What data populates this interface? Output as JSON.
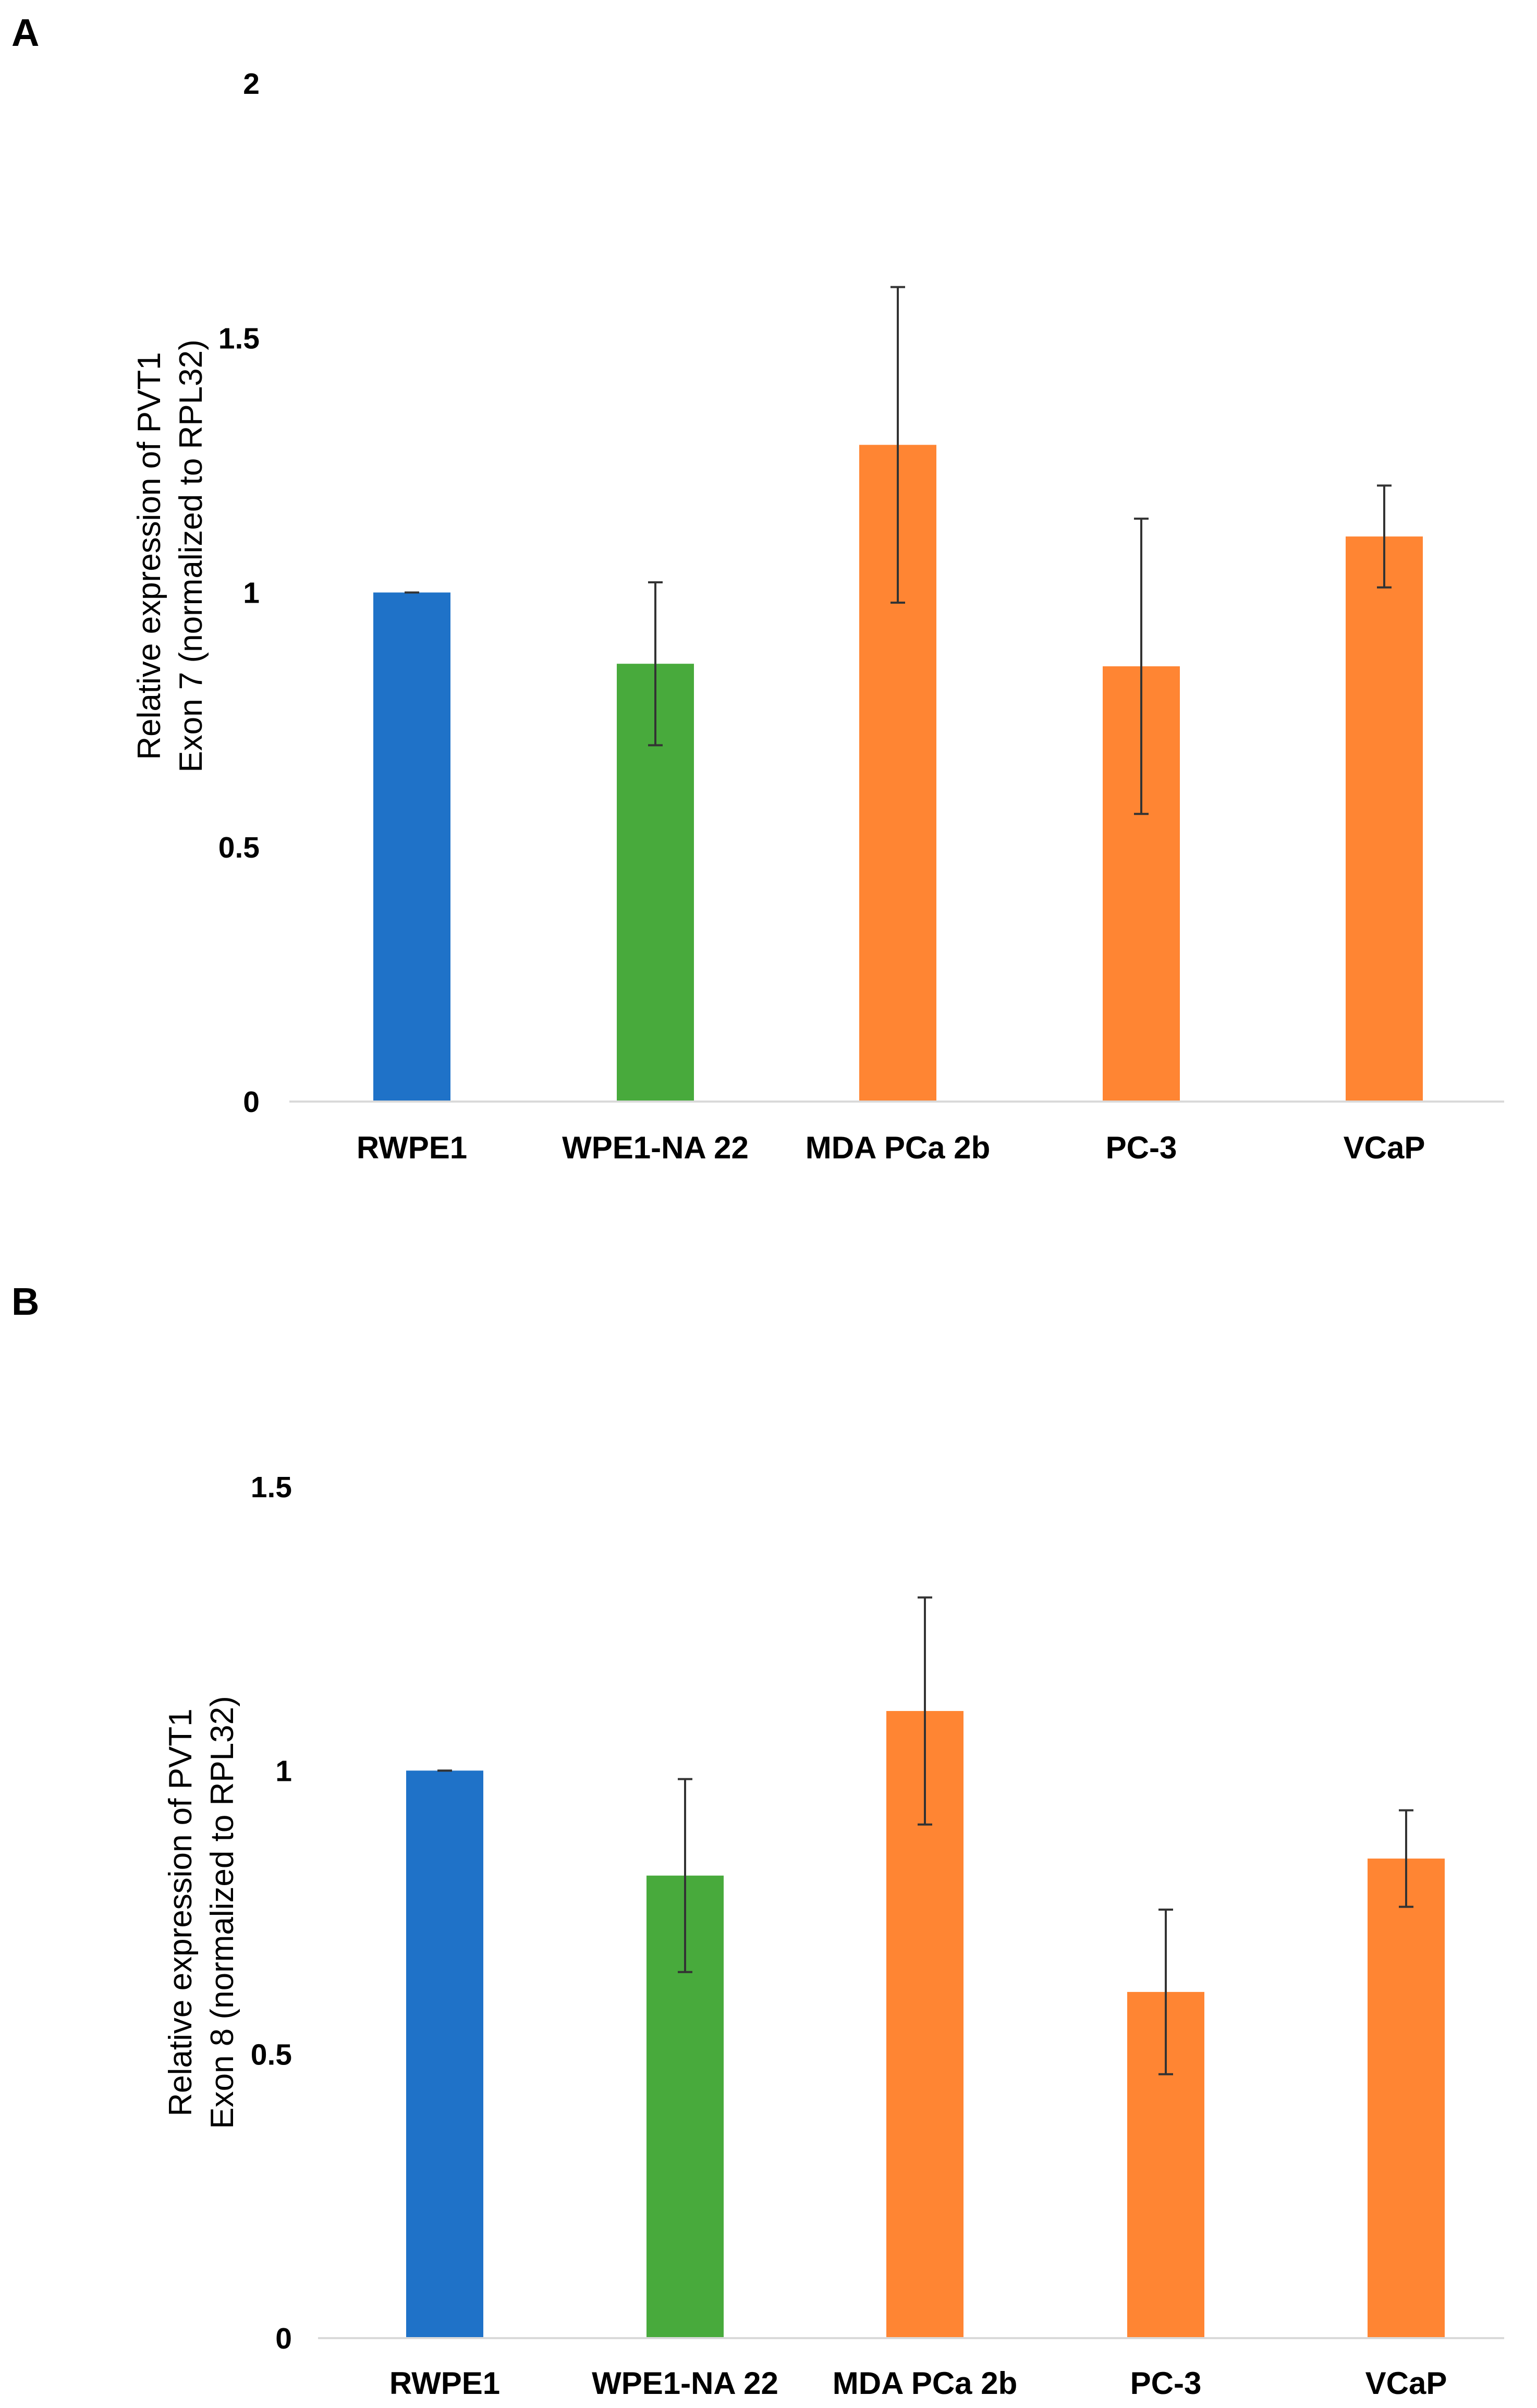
{
  "colors": {
    "RWPE1": "#1f72c8",
    "WPE1-NA 22": "#48aa3c",
    "MDA PCa 2b": "#ff8533",
    "PC-3": "#ff8533",
    "VCaP": "#ff8533",
    "error_bar": "#333333",
    "baseline": "#d9d9d9"
  },
  "chart_data": [
    {
      "panel": "A",
      "type": "bar",
      "categories": [
        "RWPE1",
        "WPE1-NA 22",
        "MDA PCa 2b",
        "PC-3",
        "VCaP"
      ],
      "values": [
        1.0,
        0.86,
        1.29,
        0.855,
        1.11
      ],
      "errors": [
        0.0,
        0.16,
        0.31,
        0.29,
        0.1
      ],
      "ylabel_lines": [
        "Relative expression of PVT1",
        "Exon 7 (normalized to RPL32)"
      ],
      "yticks": [
        "0",
        "0.5",
        "1",
        "1.5",
        "2"
      ],
      "ylim": [
        0,
        2
      ],
      "grid": false,
      "legend": false
    },
    {
      "panel": "B",
      "type": "bar",
      "categories": [
        "RWPE1",
        "WPE1-NA 22",
        "MDA PCa 2b",
        "PC-3",
        "VCaP"
      ],
      "values": [
        1.0,
        0.815,
        1.105,
        0.61,
        0.845
      ],
      "errors": [
        0.0,
        0.17,
        0.2,
        0.145,
        0.085
      ],
      "ylabel_lines": [
        "Relative expression of PVT1",
        "Exon 8 (normalized to RPL32)"
      ],
      "yticks": [
        "0",
        "0.5",
        "1",
        "1.5"
      ],
      "ylim": [
        0,
        1.5
      ],
      "grid": false,
      "legend": false
    }
  ]
}
